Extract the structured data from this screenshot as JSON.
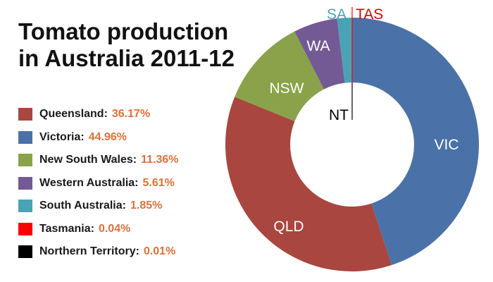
{
  "chart_data": {
    "type": "pie",
    "variant": "donut",
    "title_lines": [
      "Tomato production",
      "in Australia 2011-12"
    ],
    "legend_placement": "left",
    "slices": [
      {
        "name": "Queensland",
        "short": "QLD",
        "value": 36.17,
        "value_label": "36.17%",
        "color": "#a8463f",
        "label_color": "#ffffff"
      },
      {
        "name": "Victoria",
        "short": "VIC",
        "value": 44.96,
        "value_label": "44.96%",
        "color": "#4a72a8",
        "label_color": "#ffffff"
      },
      {
        "name": "New South Wales",
        "short": "NSW",
        "value": 11.36,
        "value_label": "11.36%",
        "color": "#8aa34a",
        "label_color": "#ffffff"
      },
      {
        "name": "Western Australia",
        "short": "WA",
        "value": 5.61,
        "value_label": "5.61%",
        "color": "#745a94",
        "label_color": "#ffffff"
      },
      {
        "name": "South Australia",
        "short": "SA",
        "value": 1.85,
        "value_label": "1.85%",
        "color": "#4aa3b5",
        "label_color": "#4aa3b5"
      },
      {
        "name": "Tasmania",
        "short": "TAS",
        "value": 0.04,
        "value_label": "0.04%",
        "color": "#ff0000",
        "label_color": "#e00000"
      },
      {
        "name": "Northern Territory",
        "short": "NT",
        "value": 0.01,
        "value_label": "0.01%",
        "color": "#000000",
        "label_color": "#000000"
      }
    ]
  }
}
